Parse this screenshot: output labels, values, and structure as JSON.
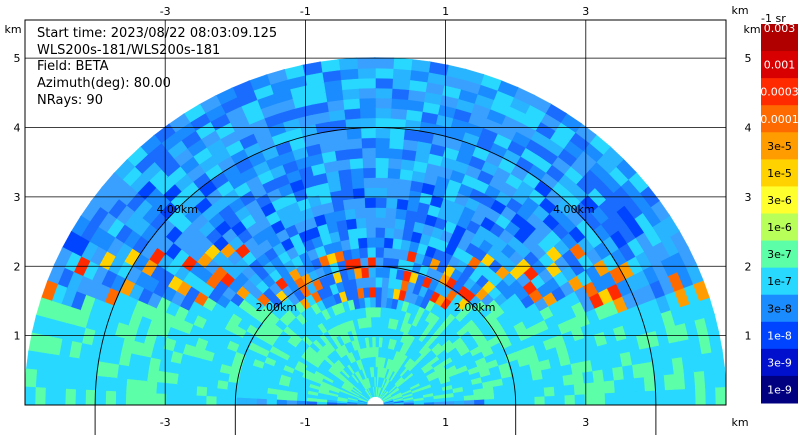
{
  "chart_data": {
    "type": "heatmap",
    "title": "",
    "info": {
      "start_time": "Start time: 2023/08/22 08:03:09.125",
      "instrument": "WLS200s-181/WLS200s-181",
      "field": "Field: BETA",
      "azimuth": "Azimuth(deg): 80.00",
      "nrays": "NRays: 90"
    },
    "x_unit": "km",
    "y_unit": "km",
    "xlim": [
      -5,
      5
    ],
    "ylim": [
      0,
      5.55
    ],
    "x_ticks": [
      -3,
      -1,
      1,
      3
    ],
    "y_ticks": [
      1,
      2,
      3,
      4,
      5
    ],
    "x_tick_labels": [
      "-3",
      "-1",
      "1",
      "3"
    ],
    "y_tick_labels": [
      "1",
      "2",
      "3",
      "4",
      "5"
    ],
    "range_rings_km": [
      2,
      4
    ],
    "range_ring_labels": [
      "2.00km",
      "4.00km"
    ],
    "max_range_km": 5,
    "grid": true,
    "colorbar": {
      "unit_label": "-1 sr",
      "labels": [
        "0.003",
        "0.001",
        "0.0003",
        "0.0001",
        "3e-5",
        "1e-5",
        "3e-6",
        "1e-6",
        "3e-7",
        "1e-7",
        "3e-8",
        "1e-8",
        "3e-9",
        "1e-9"
      ],
      "colors": [
        "#b00000",
        "#d80000",
        "#ff2a00",
        "#ff6a00",
        "#ff9d00",
        "#ffd200",
        "#ffff2e",
        "#b8ff5a",
        "#5cffa8",
        "#28d8ff",
        "#1a8cff",
        "#0044ff",
        "#0010cc",
        "#000080"
      ],
      "label_colors": [
        "#ffffff",
        "#ffffff",
        "#ffffff",
        "#ffffff",
        "#000000",
        "#000000",
        "#000000",
        "#000000",
        "#000000",
        "#000000",
        "#000000",
        "#ffffff",
        "#ffffff",
        "#ffffff"
      ]
    }
  }
}
